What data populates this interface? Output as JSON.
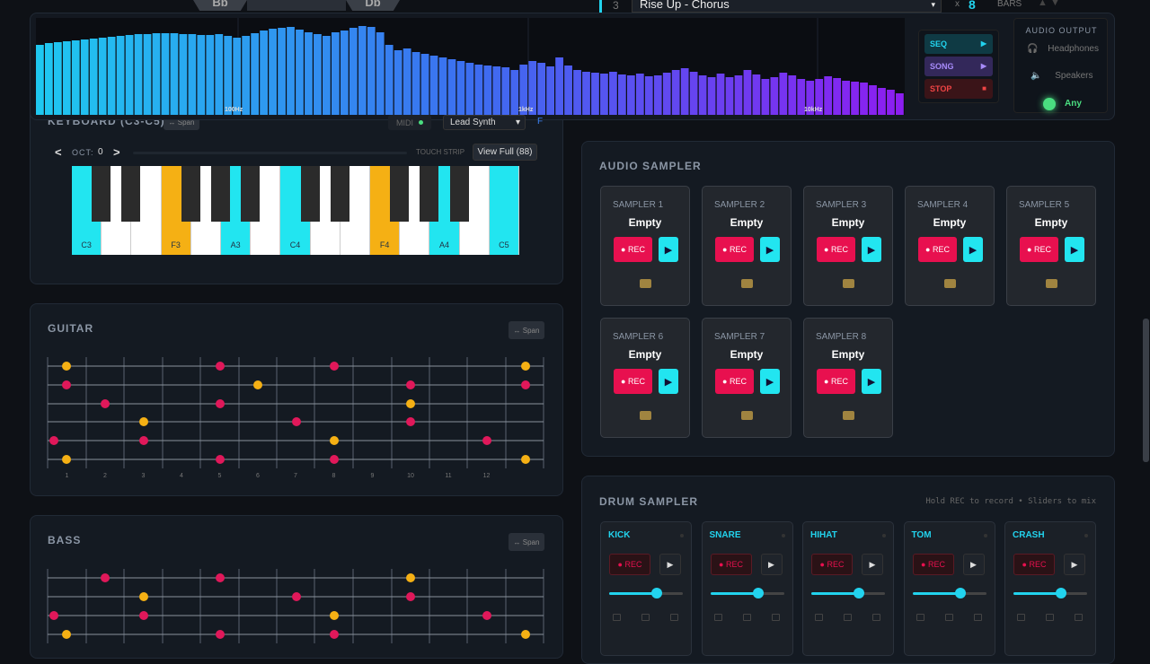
{
  "header": {
    "chord_tabs": [
      "Bb",
      "Db"
    ],
    "track_number": "3",
    "song_select": "Rise Up - Chorus",
    "multiplier": "x",
    "bars_value": "8",
    "bars_label": "BARS"
  },
  "spectrum": {
    "levels": [
      78,
      80,
      81,
      82,
      83,
      84,
      85,
      86,
      87,
      88,
      89,
      90,
      90,
      91,
      91,
      91,
      90,
      90,
      89,
      89,
      90,
      88,
      86,
      88,
      91,
      94,
      96,
      97,
      98,
      95,
      92,
      90,
      88,
      92,
      94,
      97,
      99,
      98,
      92,
      78,
      72,
      74,
      70,
      68,
      66,
      64,
      62,
      60,
      58,
      56,
      55,
      54,
      53,
      50,
      56,
      60,
      58,
      54,
      64,
      55,
      50,
      48,
      47,
      46,
      48,
      45,
      44,
      46,
      43,
      44,
      47,
      50,
      52,
      48,
      44,
      42,
      46,
      42,
      44,
      50,
      45,
      40,
      42,
      47,
      44,
      40,
      38,
      40,
      43,
      41,
      38,
      37,
      36,
      33,
      30,
      28,
      24
    ],
    "freq_labels": [
      "100Hz",
      "1kHz",
      "10kHz"
    ]
  },
  "transport": [
    "SEQ",
    "SONG",
    "STOP"
  ],
  "audio_output": {
    "title": "AUDIO OUTPUT",
    "options": [
      "Headphones",
      "Speakers",
      "Any"
    ]
  },
  "keyboard": {
    "title": "KEYBOARD (C3-C5)",
    "span": "↔ Span",
    "midi": "MIDI",
    "instrument": "Lead Synth",
    "extra": "F",
    "oct_prev": "<",
    "oct_label": "OCT:",
    "oct_value": "0",
    "oct_next": ">",
    "touch_strip": "TOUCH STRIP",
    "view_full": "View Full (88)",
    "key_labels": [
      "C3",
      "F3",
      "A3",
      "C4",
      "F4",
      "A4",
      "C5"
    ]
  },
  "guitar": {
    "title": "GUITAR",
    "span": "↔ Span",
    "frets": [
      "1",
      "2",
      "3",
      "4",
      "5",
      "6",
      "7",
      "8",
      "9",
      "10",
      "11",
      "12"
    ]
  },
  "bass": {
    "title": "BASS",
    "span": "↔ Span"
  },
  "audio_sampler": {
    "title": "AUDIO SAMPLER",
    "slots": [
      "SAMPLER 1",
      "SAMPLER 2",
      "SAMPLER 3",
      "SAMPLER 4",
      "SAMPLER 5",
      "SAMPLER 6",
      "SAMPLER 7",
      "SAMPLER 8"
    ],
    "status": "Empty",
    "rec": "● REC"
  },
  "drum_sampler": {
    "title": "DRUM SAMPLER",
    "hint": "Hold REC to record • Sliders to mix",
    "pads": [
      "KICK",
      "SNARE",
      "HIHAT",
      "TOM",
      "CRASH"
    ],
    "rec": "● REC"
  }
}
